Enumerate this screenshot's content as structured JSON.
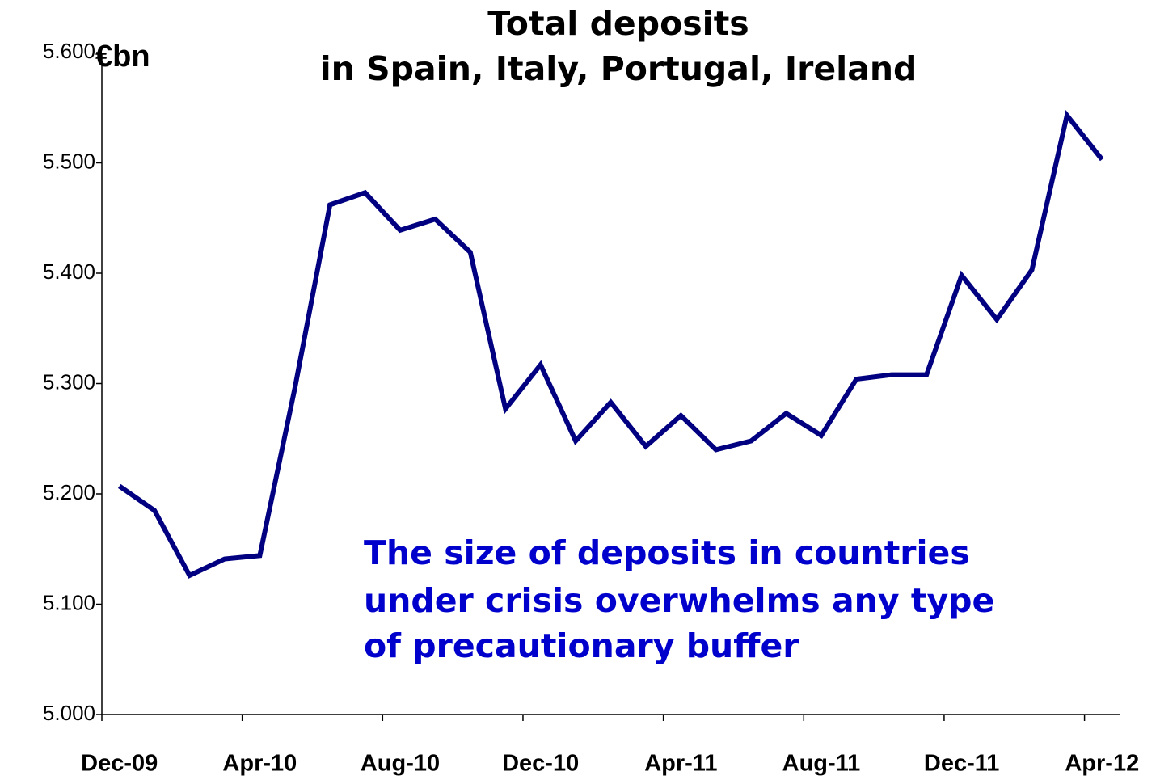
{
  "chart_data": {
    "type": "line",
    "title": [
      "Total deposits",
      "in Spain, Italy, Portugal, Ireland"
    ],
    "y_label": "€bn",
    "annotation": [
      "The size of deposits in countries",
      "under crisis  overwhelms any type",
      "of precautionary buffer"
    ],
    "categories": [
      "Dec-09",
      null,
      null,
      null,
      "Apr-10",
      null,
      null,
      null,
      "Aug-10",
      null,
      null,
      null,
      "Dec-10",
      null,
      null,
      null,
      "Apr-11",
      null,
      null,
      null,
      "Aug-11",
      null,
      null,
      null,
      "Dec-11",
      null,
      null,
      null,
      "Apr-12"
    ],
    "series": [
      {
        "name": "Total deposits",
        "color": "#000080",
        "values": [
          5207,
          5185,
          5126,
          5141,
          5144,
          5296,
          5462,
          5473,
          5439,
          5449,
          5419,
          5277,
          5317,
          5248,
          5283,
          5243,
          5271,
          5240,
          5248,
          5273,
          5253,
          5304,
          5308,
          5308,
          5398,
          5358,
          5403,
          5543,
          5503
        ]
      }
    ],
    "ylim": [
      5000,
      5600
    ],
    "yticks": [
      {
        "value": 5000,
        "label": "5.000"
      },
      {
        "value": 5100,
        "label": "5.100"
      },
      {
        "value": 5200,
        "label": "5.200"
      },
      {
        "value": 5300,
        "label": "5.300"
      },
      {
        "value": 5400,
        "label": "5.400"
      },
      {
        "value": 5500,
        "label": "5.500"
      },
      {
        "value": 5600,
        "label": "5.600"
      }
    ],
    "grid": false
  }
}
